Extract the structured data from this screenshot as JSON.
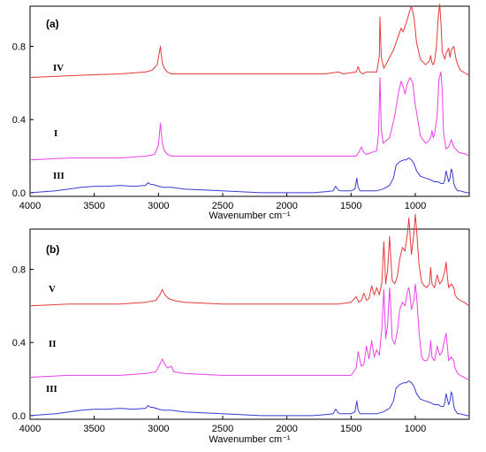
{
  "chart_data": [
    {
      "type": "line",
      "panel_label": "(a)",
      "xlabel": "Wavenumber cm⁻¹",
      "xlim": [
        4000,
        580
      ],
      "ylim": [
        -0.02,
        1.02
      ],
      "x_ticks": [
        "4000",
        "3500",
        "3000",
        "2500",
        "2000",
        "1500",
        "1000"
      ],
      "x_tick_values": [
        4000,
        3500,
        3000,
        2500,
        2000,
        1500,
        1000
      ],
      "y_ticks": [
        "0.0",
        "0.4",
        "0.8"
      ],
      "y_tick_values": [
        0.0,
        0.4,
        0.8
      ],
      "series": [
        {
          "name": "IV",
          "color": "#e8383a",
          "x": [
            4000,
            3700,
            3300,
            3100,
            3050,
            3010,
            2985,
            2970,
            2955,
            2930,
            2900,
            2700,
            2300,
            2000,
            1700,
            1600,
            1560,
            1460,
            1445,
            1430,
            1410,
            1380,
            1300,
            1280,
            1275,
            1265,
            1245,
            1200,
            1170,
            1140,
            1110,
            1095,
            1070,
            1045,
            1030,
            1010,
            990,
            960,
            920,
            890,
            880,
            870,
            860,
            850,
            835,
            820,
            810,
            800,
            790,
            770,
            760,
            740,
            730,
            720,
            700,
            680,
            650,
            600,
            580
          ],
          "y": [
            0.63,
            0.64,
            0.65,
            0.66,
            0.67,
            0.7,
            0.8,
            0.71,
            0.68,
            0.66,
            0.65,
            0.65,
            0.65,
            0.65,
            0.65,
            0.66,
            0.65,
            0.66,
            0.69,
            0.66,
            0.65,
            0.66,
            0.66,
            0.75,
            0.96,
            0.74,
            0.68,
            0.74,
            0.78,
            0.84,
            0.9,
            0.88,
            0.93,
            0.99,
            1.02,
            0.96,
            0.82,
            0.73,
            0.7,
            0.72,
            0.75,
            0.71,
            0.7,
            0.72,
            0.8,
            0.97,
            1.03,
            0.93,
            0.77,
            0.73,
            0.76,
            0.79,
            0.74,
            0.78,
            0.8,
            0.72,
            0.67,
            0.65,
            0.64
          ]
        },
        {
          "name": "I",
          "color": "#ee3fea",
          "x": [
            4000,
            3700,
            3300,
            3100,
            3030,
            3000,
            2985,
            2970,
            2955,
            2930,
            2900,
            2700,
            2300,
            2000,
            1700,
            1500,
            1460,
            1440,
            1420,
            1400,
            1380,
            1300,
            1285,
            1275,
            1265,
            1250,
            1200,
            1160,
            1130,
            1110,
            1090,
            1080,
            1060,
            1040,
            1020,
            1000,
            960,
            920,
            900,
            880,
            870,
            860,
            850,
            830,
            815,
            800,
            790,
            780,
            760,
            740,
            720,
            700,
            660,
            600,
            580
          ],
          "y": [
            0.18,
            0.19,
            0.19,
            0.2,
            0.21,
            0.26,
            0.38,
            0.27,
            0.23,
            0.21,
            0.2,
            0.2,
            0.2,
            0.2,
            0.2,
            0.2,
            0.2,
            0.22,
            0.25,
            0.22,
            0.21,
            0.23,
            0.33,
            0.63,
            0.35,
            0.27,
            0.3,
            0.42,
            0.55,
            0.61,
            0.57,
            0.54,
            0.6,
            0.63,
            0.6,
            0.48,
            0.31,
            0.27,
            0.28,
            0.3,
            0.34,
            0.3,
            0.32,
            0.42,
            0.62,
            0.66,
            0.55,
            0.33,
            0.24,
            0.25,
            0.29,
            0.25,
            0.22,
            0.21,
            0.2
          ]
        },
        {
          "name": "III",
          "color": "#3a3ad8",
          "x": [
            4000,
            3800,
            3700,
            3650,
            3600,
            3500,
            3400,
            3300,
            3200,
            3100,
            3080,
            3060,
            3040,
            3000,
            2960,
            2900,
            2800,
            2500,
            2200,
            2000,
            1800,
            1700,
            1640,
            1620,
            1600,
            1580,
            1500,
            1470,
            1455,
            1445,
            1430,
            1420,
            1300,
            1250,
            1200,
            1170,
            1150,
            1120,
            1090,
            1070,
            1050,
            1030,
            1010,
            990,
            960,
            920,
            880,
            850,
            820,
            800,
            780,
            770,
            760,
            750,
            740,
            730,
            720,
            710,
            700,
            690,
            680,
            670,
            650,
            600,
            580
          ],
          "y": [
            0.0,
            0.01,
            0.02,
            0.025,
            0.03,
            0.035,
            0.035,
            0.04,
            0.035,
            0.04,
            0.055,
            0.045,
            0.045,
            0.035,
            0.03,
            0.03,
            0.02,
            0.01,
            0.0,
            0.0,
            0.0,
            0.005,
            0.01,
            0.035,
            0.015,
            0.01,
            0.01,
            0.02,
            0.08,
            0.03,
            0.01,
            0.01,
            0.01,
            0.02,
            0.04,
            0.08,
            0.15,
            0.17,
            0.18,
            0.18,
            0.19,
            0.18,
            0.16,
            0.12,
            0.09,
            0.08,
            0.07,
            0.06,
            0.06,
            0.05,
            0.05,
            0.07,
            0.12,
            0.09,
            0.06,
            0.08,
            0.13,
            0.11,
            0.05,
            0.03,
            0.02,
            0.01,
            0.01,
            0.0,
            0.0
          ]
        }
      ]
    },
    {
      "type": "line",
      "panel_label": "(b)",
      "xlabel": "Wavenumber cm⁻¹",
      "xlim": [
        4000,
        580
      ],
      "ylim": [
        -0.02,
        1.02
      ],
      "x_ticks": [
        "4000",
        "3500",
        "3000",
        "2500",
        "2000",
        "1500",
        "1000"
      ],
      "x_tick_values": [
        4000,
        3500,
        3000,
        2500,
        2000,
        1500,
        1000
      ],
      "y_ticks": [
        "0.0",
        "0.4",
        "0.8"
      ],
      "y_tick_values": [
        0.0,
        0.4,
        0.8
      ],
      "series": [
        {
          "name": "V",
          "color": "#e8383a",
          "x": [
            4000,
            3700,
            3300,
            3100,
            3020,
            2990,
            2970,
            2950,
            2920,
            2880,
            2800,
            2500,
            2000,
            1600,
            1500,
            1460,
            1440,
            1420,
            1400,
            1380,
            1360,
            1340,
            1320,
            1300,
            1280,
            1260,
            1245,
            1240,
            1230,
            1215,
            1200,
            1190,
            1180,
            1160,
            1140,
            1120,
            1100,
            1080,
            1060,
            1050,
            1040,
            1030,
            1010,
            1000,
            990,
            970,
            950,
            930,
            910,
            890,
            880,
            870,
            850,
            830,
            810,
            790,
            770,
            760,
            750,
            740,
            720,
            700,
            690,
            670,
            650,
            620,
            600,
            580
          ],
          "y": [
            0.6,
            0.61,
            0.61,
            0.62,
            0.63,
            0.66,
            0.69,
            0.66,
            0.64,
            0.63,
            0.62,
            0.61,
            0.61,
            0.61,
            0.62,
            0.65,
            0.62,
            0.63,
            0.67,
            0.63,
            0.64,
            0.71,
            0.66,
            0.7,
            0.66,
            0.73,
            0.95,
            0.88,
            0.72,
            0.8,
            0.98,
            0.85,
            0.74,
            0.72,
            0.76,
            0.86,
            0.92,
            0.9,
            1.0,
            1.08,
            0.98,
            0.88,
            1.0,
            1.1,
            1.02,
            0.82,
            0.73,
            0.71,
            0.7,
            0.72,
            0.81,
            0.72,
            0.7,
            0.77,
            0.72,
            0.74,
            0.79,
            0.84,
            0.76,
            0.7,
            0.72,
            0.7,
            0.66,
            0.64,
            0.63,
            0.62,
            0.61,
            0.6
          ]
        },
        {
          "name": "II",
          "color": "#ee3fea",
          "x": [
            4000,
            3700,
            3300,
            3100,
            3020,
            2990,
            2970,
            2950,
            2930,
            2900,
            2880,
            2800,
            2500,
            2000,
            1600,
            1500,
            1460,
            1445,
            1420,
            1400,
            1380,
            1360,
            1340,
            1320,
            1300,
            1280,
            1260,
            1245,
            1240,
            1230,
            1215,
            1200,
            1190,
            1180,
            1160,
            1140,
            1120,
            1100,
            1080,
            1060,
            1050,
            1040,
            1030,
            1010,
            1000,
            990,
            970,
            950,
            930,
            910,
            890,
            880,
            870,
            850,
            830,
            810,
            790,
            770,
            760,
            750,
            740,
            720,
            700,
            690,
            670,
            650,
            620,
            600,
            580
          ],
          "y": [
            0.21,
            0.22,
            0.22,
            0.23,
            0.24,
            0.28,
            0.31,
            0.28,
            0.26,
            0.27,
            0.24,
            0.23,
            0.22,
            0.22,
            0.22,
            0.22,
            0.26,
            0.35,
            0.27,
            0.28,
            0.38,
            0.31,
            0.41,
            0.32,
            0.36,
            0.33,
            0.48,
            0.69,
            0.6,
            0.42,
            0.5,
            0.7,
            0.58,
            0.42,
            0.39,
            0.46,
            0.58,
            0.62,
            0.6,
            0.68,
            0.7,
            0.65,
            0.58,
            0.63,
            0.72,
            0.66,
            0.45,
            0.32,
            0.3,
            0.3,
            0.33,
            0.41,
            0.32,
            0.3,
            0.38,
            0.33,
            0.35,
            0.42,
            0.45,
            0.38,
            0.3,
            0.32,
            0.3,
            0.26,
            0.23,
            0.22,
            0.21,
            0.2,
            0.2
          ]
        },
        {
          "name": "III",
          "color": "#3a3ad8",
          "x": [
            4000,
            3800,
            3700,
            3650,
            3600,
            3500,
            3400,
            3300,
            3200,
            3100,
            3080,
            3060,
            3040,
            3000,
            2960,
            2900,
            2800,
            2500,
            2200,
            2000,
            1800,
            1700,
            1640,
            1620,
            1600,
            1580,
            1500,
            1470,
            1455,
            1445,
            1430,
            1420,
            1300,
            1250,
            1200,
            1170,
            1150,
            1120,
            1090,
            1070,
            1050,
            1030,
            1010,
            990,
            960,
            920,
            880,
            850,
            820,
            800,
            780,
            770,
            760,
            750,
            740,
            730,
            720,
            710,
            700,
            690,
            680,
            670,
            650,
            600,
            580
          ],
          "y": [
            0.0,
            0.01,
            0.02,
            0.025,
            0.03,
            0.035,
            0.035,
            0.04,
            0.035,
            0.04,
            0.055,
            0.045,
            0.045,
            0.035,
            0.03,
            0.03,
            0.02,
            0.01,
            0.0,
            0.0,
            0.0,
            0.005,
            0.01,
            0.035,
            0.015,
            0.01,
            0.01,
            0.02,
            0.08,
            0.03,
            0.01,
            0.01,
            0.01,
            0.02,
            0.04,
            0.08,
            0.15,
            0.17,
            0.18,
            0.18,
            0.19,
            0.18,
            0.16,
            0.12,
            0.09,
            0.08,
            0.07,
            0.06,
            0.06,
            0.05,
            0.05,
            0.07,
            0.12,
            0.09,
            0.06,
            0.08,
            0.13,
            0.11,
            0.05,
            0.03,
            0.02,
            0.01,
            0.01,
            0.0,
            0.0
          ]
        }
      ]
    }
  ]
}
